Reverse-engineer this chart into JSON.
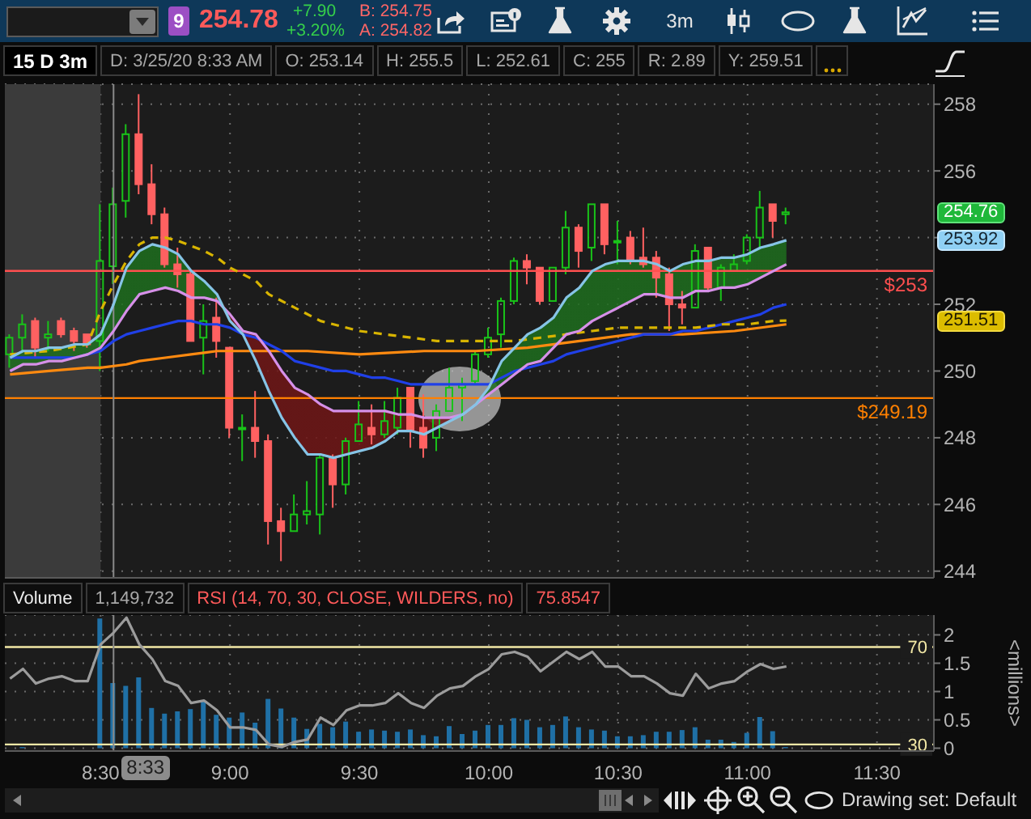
{
  "chart_data": [
    {
      "type": "candlestick",
      "title": "15 D 3m",
      "x": [
        8.15,
        8.2,
        8.25,
        8.3,
        8.35,
        8.4,
        8.45,
        8.5,
        8.55,
        8.6,
        8.65,
        8.7,
        8.75,
        8.8,
        8.85,
        8.9,
        8.95,
        9,
        9.05,
        9.1,
        9.15,
        9.2,
        9.25,
        9.3,
        9.35,
        9.4,
        9.45,
        9.5,
        9.55,
        9.6,
        9.65,
        9.7,
        9.75,
        9.8,
        9.85,
        9.9,
        9.95,
        10,
        10.05,
        10.1,
        10.15,
        10.2,
        10.25,
        10.3,
        10.35,
        10.4,
        10.45,
        10.5,
        10.55,
        10.6,
        10.65,
        10.7,
        10.75,
        10.8,
        10.85,
        10.9,
        10.95,
        11,
        11.05,
        11.1,
        11.15
      ],
      "ohlc": [
        [
          250.5,
          251.1,
          250.1,
          251.0
        ],
        [
          251.0,
          251.7,
          250.6,
          251.4
        ],
        [
          251.5,
          251.6,
          250.4,
          250.7
        ],
        [
          251.0,
          251.5,
          250.6,
          251.1
        ],
        [
          251.5,
          251.6,
          251.0,
          251.1
        ],
        [
          251.2,
          251.3,
          250.6,
          250.9
        ],
        [
          251.1,
          251.1,
          250.7,
          250.8
        ],
        [
          250.9,
          255.0,
          250.0,
          253.3
        ],
        [
          253.14,
          255.5,
          252.61,
          255
        ],
        [
          255.1,
          257.4,
          254.6,
          257.1
        ],
        [
          257.1,
          258.3,
          255.3,
          255.6
        ],
        [
          255.6,
          256.2,
          254.4,
          254.7
        ],
        [
          254.7,
          254.9,
          253.1,
          253.2
        ],
        [
          253.2,
          253.7,
          252.5,
          252.9
        ],
        [
          252.9,
          253.0,
          250.9,
          250.9
        ],
        [
          251.0,
          252.0,
          249.9,
          251.5
        ],
        [
          251.6,
          252.2,
          250.4,
          250.9
        ],
        [
          250.7,
          250.7,
          248.0,
          248.3
        ],
        [
          248.3,
          248.7,
          247.3,
          248.3
        ],
        [
          248.3,
          249.4,
          247.4,
          247.9
        ],
        [
          247.9,
          248.1,
          244.8,
          245.5
        ],
        [
          245.5,
          245.9,
          244.3,
          245.2
        ],
        [
          245.2,
          246.3,
          245.2,
          245.7
        ],
        [
          245.7,
          246.7,
          245.4,
          245.8
        ],
        [
          245.7,
          247.5,
          245.1,
          247.4
        ],
        [
          247.4,
          247.5,
          245.9,
          246.6
        ],
        [
          246.6,
          248.0,
          246.3,
          247.9
        ],
        [
          247.9,
          249.1,
          247.9,
          248.4
        ],
        [
          248.3,
          249.0,
          247.8,
          248.1
        ],
        [
          248.1,
          249.1,
          248.0,
          248.5
        ],
        [
          248.3,
          249.5,
          248.1,
          249.2
        ],
        [
          249.5,
          249.5,
          247.7,
          248.2
        ],
        [
          248.3,
          249.3,
          247.4,
          247.7
        ],
        [
          248.0,
          249.0,
          247.6,
          248.8
        ],
        [
          248.8,
          250.1,
          248.8,
          249.5
        ],
        [
          249.5,
          249.8,
          248.5,
          249.6
        ],
        [
          249.7,
          250.6,
          249.6,
          250.5
        ],
        [
          250.5,
          251.3,
          250.4,
          251.0
        ],
        [
          251.1,
          252.2,
          250.7,
          252.1
        ],
        [
          252.1,
          253.4,
          252.0,
          253.3
        ],
        [
          253.3,
          253.5,
          252.6,
          253.1
        ],
        [
          253.1,
          253.1,
          252.0,
          252.1
        ],
        [
          252.1,
          253.1,
          252.1,
          253.1
        ],
        [
          253.1,
          254.8,
          252.9,
          254.3
        ],
        [
          254.3,
          254.4,
          253.1,
          253.6
        ],
        [
          253.7,
          255.0,
          253.3,
          255.0
        ],
        [
          255.0,
          255.0,
          253.5,
          253.8
        ],
        [
          253.9,
          254.5,
          253.2,
          253.9
        ],
        [
          254.0,
          254.2,
          253.2,
          253.3
        ],
        [
          253.4,
          254.3,
          253.1,
          253.2
        ],
        [
          253.4,
          253.6,
          252.2,
          252.8
        ],
        [
          252.9,
          253.1,
          251.2,
          252.0
        ],
        [
          252.0,
          252.4,
          251.4,
          251.9
        ],
        [
          251.9,
          253.8,
          251.9,
          253.6
        ],
        [
          253.7,
          253.7,
          252.4,
          252.5
        ],
        [
          252.5,
          253.2,
          252.1,
          253.1
        ],
        [
          253.0,
          253.5,
          253.0,
          253.2
        ],
        [
          253.3,
          254.1,
          253.2,
          254.0
        ],
        [
          254.0,
          255.4,
          253.7,
          254.9
        ],
        [
          255.0,
          255.0,
          254.0,
          254.5
        ],
        [
          254.7,
          254.9,
          254.4,
          254.76
        ]
      ],
      "colors": [
        "#19c319",
        "#19c319",
        "#ff6161",
        "#19c319",
        "#ff6161",
        "#ff6161",
        "#ff6161",
        "#19c319",
        "#19c319",
        "#19c319",
        "#ff6161",
        "#ff6161",
        "#ff6161",
        "#ff6161",
        "#ff6161",
        "#19c319",
        "#ff6161",
        "#ff6161",
        "#19c319",
        "#ff6161",
        "#ff6161",
        "#ff6161",
        "#19c319",
        "#19c319",
        "#19c319",
        "#ff6161",
        "#19c319",
        "#19c319",
        "#ff6161",
        "#19c319",
        "#19c319",
        "#ff6161",
        "#ff6161",
        "#19c319",
        "#19c319",
        "#19c319",
        "#19c319",
        "#19c319",
        "#19c319",
        "#19c319",
        "#ff6161",
        "#ff6161",
        "#19c319",
        "#19c319",
        "#ff6161",
        "#19c319",
        "#ff6161",
        "#19c319",
        "#ff6161",
        "#ff6161",
        "#ff6161",
        "#ff6161",
        "#ff6161",
        "#19c319",
        "#ff6161",
        "#19c319",
        "#19c319",
        "#19c319",
        "#19c319",
        "#ff6161",
        "#19c319"
      ],
      "series": [
        {
          "type": "line",
          "color": "#ff8a10",
          "x": [
            8.15,
            8.3,
            8.45,
            8.5,
            8.6,
            8.65,
            8.75,
            8.85,
            8.95,
            9.1,
            9.3,
            9.5,
            9.75,
            9.95,
            10.15,
            10.35,
            10.55,
            10.75,
            10.95,
            11.15
          ],
          "values": [
            249.9,
            250.0,
            250.1,
            250.1,
            250.2,
            250.3,
            250.4,
            250.5,
            250.6,
            250.6,
            250.6,
            250.5,
            250.6,
            250.6,
            250.7,
            250.9,
            251.1,
            251.1,
            251.2,
            251.4
          ]
        },
        {
          "type": "line",
          "color": "#2040e8",
          "values": [
            250.4,
            250.4,
            250.4,
            250.4,
            250.4,
            250.4,
            250.5,
            250.6,
            250.9,
            251.1,
            251.2,
            251.3,
            251.4,
            251.5,
            251.5,
            251.4,
            251.4,
            251.3,
            251.1,
            251.0,
            250.8,
            250.6,
            250.3,
            250.2,
            250.1,
            250.0,
            250.0,
            249.9,
            249.8,
            249.8,
            249.7,
            249.6,
            249.6,
            249.6,
            249.6,
            249.6,
            249.6,
            249.6,
            249.8,
            250.0,
            250.1,
            250.2,
            250.3,
            250.5,
            250.6,
            250.7,
            250.8,
            250.9,
            251.0,
            251.1,
            251.1,
            251.1,
            251.2,
            251.2,
            251.3,
            251.4,
            251.5,
            251.6,
            251.7,
            251.9,
            252.0
          ]
        },
        {
          "type": "line",
          "color": "#d8b400",
          "line_style": "dashed",
          "x": [
            8.15,
            8.3,
            8.45,
            8.5,
            8.55,
            8.6,
            8.65,
            8.7,
            8.75,
            8.8,
            8.9,
            8.95,
            9,
            9.1,
            9.15,
            9.25,
            9.35,
            9.4,
            9.5,
            9.6,
            9.7,
            9.8,
            9.9,
            10,
            10.1,
            10.2,
            10.3,
            10.4,
            10.5,
            10.7,
            10.8,
            10.9,
            11,
            11.1,
            11.15
          ],
          "values": [
            250.5,
            250.6,
            250.8,
            251.8,
            252.6,
            253.3,
            253.8,
            254.0,
            254.0,
            253.9,
            253.6,
            253.4,
            253.1,
            252.7,
            252.3,
            251.9,
            251.5,
            251.4,
            251.2,
            251.1,
            251.0,
            250.9,
            250.9,
            250.9,
            250.9,
            251.0,
            251.1,
            251.2,
            251.3,
            251.3,
            251.3,
            251.4,
            251.4,
            251.5,
            251.51
          ]
        },
        {
          "type": "line",
          "color": "#d690e8",
          "values": [
            250.0,
            250.2,
            250.2,
            250.3,
            250.3,
            250.4,
            250.5,
            250.7,
            251.2,
            251.8,
            252.3,
            252.4,
            252.5,
            252.4,
            252.2,
            252.2,
            252.1,
            251.7,
            251.2,
            251.1,
            250.6,
            250.0,
            249.5,
            249.3,
            249.0,
            248.8,
            248.8,
            248.8,
            248.8,
            248.8,
            248.7,
            248.7,
            248.6,
            248.6,
            248.6,
            248.7,
            249.0,
            249.3,
            249.6,
            249.9,
            250.2,
            250.3,
            250.7,
            251.1,
            251.2,
            251.5,
            251.7,
            251.9,
            252.1,
            252.3,
            252.3,
            252.2,
            252.2,
            252.4,
            252.4,
            252.5,
            252.5,
            252.6,
            252.8,
            253.0,
            253.2
          ]
        },
        {
          "type": "line",
          "color": "#86c4e6",
          "values": [
            250.4,
            250.6,
            250.6,
            250.7,
            250.7,
            250.8,
            250.8,
            251.1,
            252.0,
            253.1,
            253.6,
            253.8,
            253.7,
            253.5,
            253.0,
            252.7,
            252.3,
            251.5,
            251.1,
            250.3,
            249.4,
            248.6,
            248.0,
            247.5,
            247.5,
            247.4,
            247.5,
            247.6,
            247.7,
            247.9,
            248.2,
            248.2,
            248.1,
            248.3,
            248.5,
            248.7,
            249.0,
            249.5,
            250.3,
            250.7,
            251.1,
            251.3,
            251.6,
            252.2,
            252.5,
            253.0,
            253.2,
            253.3,
            253.3,
            253.3,
            253.2,
            253.0,
            253.2,
            253.3,
            253.3,
            253.4,
            253.4,
            253.5,
            253.7,
            253.8,
            253.92
          ],
          "upper": [
            250.4,
            250.6,
            250.6,
            250.7,
            250.7,
            250.8,
            250.8,
            251.1,
            252.0,
            253.1,
            253.6,
            253.8,
            253.7,
            253.5,
            253.0,
            252.7,
            252.3,
            251.7,
            251.2,
            251.1,
            250.6,
            250.0,
            249.5,
            249.3,
            249.0,
            248.8,
            248.8,
            248.8,
            248.8,
            248.8,
            248.7,
            248.7,
            248.6,
            248.6,
            248.6,
            248.7,
            249.0,
            249.5,
            250.3,
            250.7,
            251.1,
            251.3,
            251.6,
            252.2,
            252.5,
            253.0,
            253.2,
            253.3,
            253.3,
            253.3,
            253.2,
            253.0,
            253.2,
            253.3,
            253.3,
            253.4,
            253.4,
            253.5,
            253.7,
            253.8,
            253.92
          ],
          "lower": [
            250.0,
            250.2,
            250.2,
            250.3,
            250.3,
            250.4,
            250.5,
            250.7,
            251.2,
            251.8,
            252.3,
            252.4,
            252.5,
            252.4,
            252.2,
            252.2,
            252.1,
            251.5,
            251.1,
            250.3,
            249.4,
            248.6,
            248.0,
            247.5,
            247.5,
            247.4,
            247.5,
            247.6,
            247.7,
            247.9,
            248.2,
            248.2,
            248.1,
            248.3,
            248.5,
            248.7,
            249.0,
            249.3,
            249.6,
            249.9,
            250.2,
            250.3,
            250.7,
            251.1,
            251.2,
            251.5,
            251.7,
            251.9,
            252.1,
            252.3,
            252.3,
            252.2,
            252.2,
            252.4,
            252.4,
            252.5,
            252.5,
            252.6,
            252.8,
            253.0,
            253.2
          ]
        }
      ],
      "xlim": [
        8.13,
        11.72
      ],
      "xticks": [
        8.5,
        9,
        9.5,
        10,
        10.5,
        11,
        11.5
      ],
      "ylim": [
        243.8,
        258.6
      ],
      "yticks": [
        244,
        246,
        248,
        250,
        252,
        {
          "value": 254,
          "label": null
        },
        256,
        258
      ],
      "tick_labels": "y",
      "grid": true,
      "ref_lines": [
        {
          "axis": "y",
          "value": 253,
          "label": "$253",
          "color": "#ff4f4f"
        },
        {
          "axis": "y",
          "value": 249.19,
          "label": "$249.19",
          "color": "#ff8000"
        },
        {
          "axis": "x",
          "value": 8.55,
          "color": "#8a8a8a"
        }
      ],
      "bands": [
        {
          "axis": "x",
          "from": 8.13,
          "to": 8.5,
          "color": "#3b3b3b"
        }
      ],
      "annotations": [
        "9",
        "254.78",
        "+7.90",
        "+3.20%",
        "B: 254.75",
        "A: 254.82",
        "3m",
        "D: 3/25/20 8:33 AM",
        "O: 253.14",
        "H: 255.5",
        "L: 252.61",
        "C: 255",
        "R: 2.89",
        "Y: 259.51",
        {
          "text": "254.76",
          "y": 254.76
        },
        {
          "text": "253.92",
          "y": 253.92
        },
        {
          "text": "251.51",
          "y": 251.51
        }
      ]
    },
    {
      "type": "bar",
      "x": [
        8.15,
        8.2,
        8.25,
        8.3,
        8.35,
        8.4,
        8.45,
        8.5,
        8.55,
        8.6,
        8.65,
        8.7,
        8.75,
        8.8,
        8.85,
        8.9,
        8.95,
        9,
        9.05,
        9.1,
        9.15,
        9.2,
        9.25,
        9.3,
        9.35,
        9.4,
        9.45,
        9.5,
        9.55,
        9.6,
        9.65,
        9.7,
        9.75,
        9.8,
        9.85,
        9.9,
        9.95,
        10,
        10.05,
        10.1,
        10.15,
        10.2,
        10.25,
        10.3,
        10.35,
        10.4,
        10.45,
        10.5,
        10.55,
        10.6,
        10.65,
        10.7,
        10.75,
        10.8,
        10.85,
        10.9,
        10.95,
        11,
        11.05,
        11.1,
        11.15
      ],
      "series": [
        {
          "type": "bar",
          "name": "Volume",
          "color": "#1f70a6",
          "x": [
            8.2,
            8.5,
            8.55,
            8.6,
            8.65,
            8.7,
            8.75,
            8.8,
            8.85,
            8.9,
            8.95,
            9,
            9.05,
            9.1,
            9.15,
            9.2,
            9.25,
            9.3,
            9.35,
            9.4,
            9.45,
            9.5,
            9.55,
            9.6,
            9.65,
            9.7,
            9.75,
            9.8,
            9.85,
            9.9,
            9.95,
            10,
            10.05,
            10.1,
            10.15,
            10.2,
            10.25,
            10.3,
            10.35,
            10.4,
            10.45,
            10.5,
            10.55,
            10.6,
            10.65,
            10.7,
            10.75,
            10.8,
            10.85,
            10.9,
            10.95,
            11,
            11.05,
            11.1,
            11.15
          ],
          "values": [
            0.02,
            2.29,
            1.149732,
            1.1,
            1.25,
            0.71,
            0.61,
            0.65,
            0.69,
            0.83,
            0.59,
            0.54,
            0.63,
            0.45,
            0.87,
            0.7,
            0.54,
            0.34,
            0.43,
            0.37,
            0.47,
            0.29,
            0.33,
            0.31,
            0.29,
            0.33,
            0.23,
            0.21,
            0.39,
            0.25,
            0.31,
            0.41,
            0.41,
            0.53,
            0.5,
            0.37,
            0.41,
            0.56,
            0.37,
            0.33,
            0.31,
            0.21,
            0.21,
            0.23,
            0.29,
            0.29,
            0.32,
            0.37,
            0.15,
            0.15,
            0.11,
            0.27,
            0.55,
            0.3,
            0.02
          ]
        },
        {
          "type": "line",
          "name": "RSI (14, 70, 30, CLOSE, WILDERS, no)",
          "color": "#9c9c9c",
          "axis": "y2",
          "values": [
            57,
            61,
            55,
            57,
            58,
            56,
            56,
            71,
            75.8547,
            82,
            71,
            65,
            56,
            54,
            47,
            48,
            44,
            37,
            37,
            36,
            30,
            29,
            31,
            32,
            41,
            38,
            44,
            46,
            46,
            47,
            51,
            47,
            45,
            50,
            53,
            54,
            58,
            61,
            67,
            68,
            66,
            60,
            64,
            68,
            65,
            68,
            62,
            62,
            58,
            58,
            55,
            51,
            50,
            59,
            53,
            55,
            56,
            60,
            63,
            61,
            62
          ]
        }
      ],
      "xlim": [
        8.13,
        11.72
      ],
      "xticks": [
        {
          "value": 8.5,
          "label": "8:30"
        },
        {
          "value": 9,
          "label": "9:00"
        },
        {
          "value": 9.5,
          "label": "9:30"
        },
        {
          "value": 10,
          "label": "10:00"
        },
        {
          "value": 10.5,
          "label": "10:30"
        },
        {
          "value": 11,
          "label": "11:00"
        },
        {
          "value": 11.5,
          "label": "11:30"
        }
      ],
      "ylim": [
        -0.05,
        2.35
      ],
      "yticks": [
        0,
        0.5,
        1,
        1.5,
        2
      ],
      "y2lim": [
        27.3,
        83.1
      ],
      "ylabel": "<millions>",
      "grid": true,
      "legend": "top left",
      "ref_lines": [
        {
          "axis": "y2",
          "value": 30,
          "label": "30",
          "color": "#f2e8a6"
        },
        {
          "axis": "y2",
          "value": 70,
          "label": "70",
          "color": "#f2e8a6"
        },
        {
          "axis": "x",
          "value": 8.55,
          "color": "#8a8a8a"
        }
      ],
      "annotations": [
        "1,149,732",
        "75.8547",
        "8:33",
        "Drawing set: Default"
      ]
    }
  ]
}
